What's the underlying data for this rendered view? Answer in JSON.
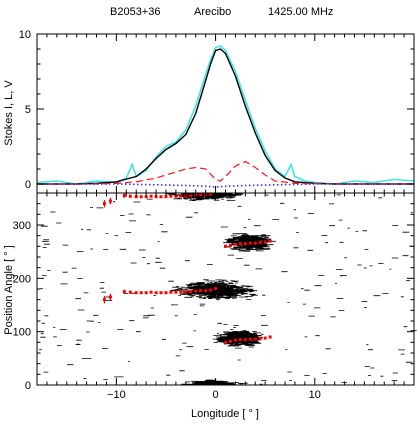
{
  "chart_data": [
    {
      "type": "line",
      "title": "",
      "header": {
        "pulsar": "B2053+36",
        "telescope": "Arecibo",
        "frequency": "1425.00 MHz"
      },
      "ylabel": "Stokes I, L, V",
      "xlim": [
        -18,
        20
      ],
      "ylim": [
        -0.6,
        10
      ],
      "yticks": [
        "0",
        "5",
        "10"
      ],
      "grid": false,
      "series": [
        {
          "name": "",
          "color": "#3fe6e6",
          "x": [
            -18,
            -16,
            -14,
            -12,
            -10,
            -9,
            -8.4,
            -8,
            -7,
            -6,
            -5,
            -4,
            -3,
            -2,
            -1,
            -0.5,
            0,
            0.5,
            1,
            2,
            3,
            4,
            5,
            6,
            7,
            7.6,
            8,
            9,
            10,
            12,
            14,
            16,
            18,
            20
          ],
          "y": [
            0.1,
            0.2,
            0.0,
            0.2,
            0.1,
            0.4,
            1.3,
            0.5,
            0.9,
            1.8,
            2.5,
            2.8,
            3.6,
            5.2,
            7.3,
            8.3,
            9.1,
            9.2,
            8.9,
            7.5,
            5.6,
            3.7,
            2.2,
            1.0,
            0.5,
            1.3,
            0.5,
            0.2,
            0.1,
            0.0,
            0.2,
            0.1,
            0.3,
            0.2
          ]
        },
        {
          "name": "",
          "color": "#000000",
          "x": [
            -18,
            -14,
            -12,
            -10,
            -8,
            -7,
            -6,
            -5,
            -4,
            -3,
            -2,
            -1,
            -0.5,
            0,
            0.5,
            1,
            2,
            3,
            4,
            5,
            6,
            7,
            8,
            10,
            12,
            16,
            20
          ],
          "y": [
            0.0,
            0.0,
            0.05,
            0.15,
            0.5,
            1.0,
            1.7,
            2.3,
            2.7,
            3.3,
            4.7,
            6.9,
            8.0,
            8.9,
            9.0,
            8.7,
            7.2,
            5.2,
            3.4,
            1.9,
            0.9,
            0.4,
            0.15,
            0.05,
            0.0,
            0.0,
            0.0
          ]
        },
        {
          "name": "",
          "color": "#ff2020",
          "x": [
            -18,
            -12,
            -10,
            -8,
            -6,
            -4,
            -3,
            -2,
            -1,
            0,
            0.5,
            1,
            2,
            3,
            4,
            5,
            6,
            8,
            12,
            20
          ],
          "y": [
            0.0,
            0.0,
            0.05,
            0.15,
            0.4,
            0.8,
            1.0,
            1.1,
            1.0,
            0.3,
            0.2,
            0.5,
            1.2,
            1.5,
            1.1,
            0.6,
            0.2,
            0.05,
            0.0,
            0.0
          ]
        },
        {
          "name": "",
          "color": "#3030dd",
          "x": [
            -18,
            -10,
            -6,
            -3,
            -1,
            0,
            1,
            3,
            6,
            10,
            20
          ],
          "y": [
            0.0,
            0.0,
            -0.05,
            -0.1,
            -0.15,
            -0.2,
            -0.15,
            -0.1,
            -0.05,
            0.0,
            0.0
          ]
        }
      ]
    },
    {
      "type": "scatter",
      "title": "",
      "xlabel": "Longitude [ ° ]",
      "ylabel": "Position Angle [ ° ]",
      "xlim": [
        -18,
        20
      ],
      "ylim": [
        0,
        360
      ],
      "xticks": [
        "−10",
        "0",
        "10"
      ],
      "yticks": [
        "0",
        "100",
        "200",
        "300"
      ],
      "grid": false,
      "background_density": [
        {
          "x": 0,
          "y": 178,
          "spread_x": 3.8,
          "spread_y": 18,
          "weight": 1.0
        },
        {
          "x": 3.5,
          "y": 268,
          "spread_x": 2.2,
          "spread_y": 16,
          "weight": 0.8
        },
        {
          "x": 2.5,
          "y": 88,
          "spread_x": 2.4,
          "spread_y": 16,
          "weight": 0.8
        },
        {
          "x": -1,
          "y": 356,
          "spread_x": 3.5,
          "spread_y": 10,
          "weight": 0.5
        },
        {
          "x": 0,
          "y": 2,
          "spread_x": 2.5,
          "spread_y": 8,
          "weight": 0.4
        }
      ],
      "series": [
        {
          "name": "",
          "color": "#ff0000",
          "points": [
            [
              -11.2,
              160,
              7
            ],
            [
              -10.6,
              165,
              6
            ],
            [
              -9.2,
              175,
              4
            ],
            [
              -8.6,
              174,
              3
            ],
            [
              -8.0,
              173,
              2
            ],
            [
              -7.5,
              173,
              2
            ],
            [
              -7.0,
              173,
              2
            ],
            [
              -6.5,
              174,
              2
            ],
            [
              -6.0,
              173,
              2
            ],
            [
              -5.5,
              173,
              2
            ],
            [
              -5.0,
              173,
              2
            ],
            [
              -4.5,
              174,
              2
            ],
            [
              -4.0,
              174,
              2
            ],
            [
              -3.5,
              174,
              2
            ],
            [
              -3.0,
              175,
              2
            ],
            [
              -2.5,
              175,
              2
            ],
            [
              -2.0,
              176,
              2
            ],
            [
              -1.5,
              177,
              2
            ],
            [
              -1.0,
              177,
              2
            ],
            [
              -0.5,
              178,
              2
            ],
            [
              0.0,
              181,
              3
            ],
            [
              -11.2,
              340,
              7
            ],
            [
              -10.6,
              345,
              6
            ],
            [
              -9.2,
              355,
              4
            ],
            [
              -8.6,
              354,
              3
            ],
            [
              -8.0,
              353,
              2
            ],
            [
              -7.5,
              353,
              2
            ],
            [
              -7.0,
              353,
              2
            ],
            [
              -6.5,
              354,
              2
            ],
            [
              -6.0,
              353,
              2
            ],
            [
              -5.5,
              353,
              2
            ],
            [
              -5.0,
              353,
              2
            ],
            [
              -4.5,
              354,
              2
            ],
            [
              -4.0,
              354,
              2
            ],
            [
              -3.5,
              354,
              2
            ],
            [
              -3.0,
              355,
              2
            ],
            [
              -2.5,
              355,
              2
            ],
            [
              -2.0,
              356,
              2
            ],
            [
              -1.5,
              357,
              2
            ],
            [
              -1.0,
              357,
              2
            ],
            [
              -0.5,
              358,
              2
            ],
            [
              0.0,
              361,
              3
            ],
            [
              1.0,
              80,
              3
            ],
            [
              1.5,
              82,
              2
            ],
            [
              2.0,
              84,
              2
            ],
            [
              2.5,
              85,
              2
            ],
            [
              3.0,
              85,
              2
            ],
            [
              3.5,
              86,
              2
            ],
            [
              4.0,
              86,
              2
            ],
            [
              4.5,
              87,
              2
            ],
            [
              5.0,
              88,
              2
            ],
            [
              5.5,
              90,
              3
            ],
            [
              1.0,
              260,
              3
            ],
            [
              1.5,
              262,
              2
            ],
            [
              2.0,
              264,
              2
            ],
            [
              2.5,
              265,
              2
            ],
            [
              3.0,
              265,
              2
            ],
            [
              3.5,
              266,
              2
            ],
            [
              4.0,
              266,
              2
            ],
            [
              4.5,
              267,
              2
            ],
            [
              5.0,
              268,
              2
            ],
            [
              5.5,
              270,
              3
            ]
          ]
        }
      ]
    }
  ]
}
